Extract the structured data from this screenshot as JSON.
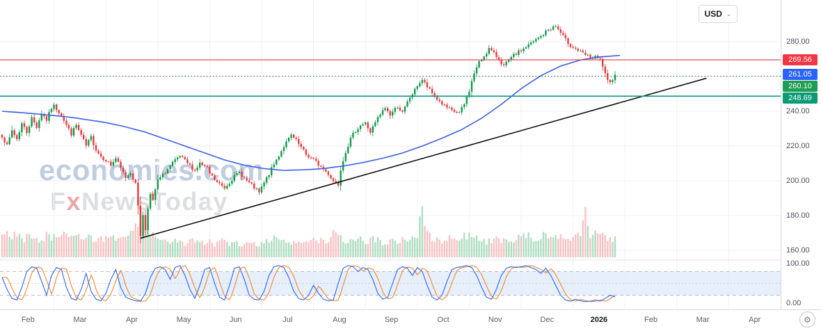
{
  "currency_selector": {
    "label": "USD",
    "chevron_icon": "⌄"
  },
  "watermark": {
    "line1": "economies.com",
    "line2_parts": [
      "F",
      "x",
      "NewsToday"
    ]
  },
  "icons": {
    "gear": "⚙",
    "chevron_down": "⌄"
  },
  "price_axis": {
    "ticks": [
      {
        "label": "280.00",
        "price": 280
      },
      {
        "label": "240.00",
        "price": 240
      },
      {
        "label": "220.00",
        "price": 220
      },
      {
        "label": "200.00",
        "price": 200
      },
      {
        "label": "180.00",
        "price": 180
      },
      {
        "label": "160.00",
        "price": 160
      }
    ],
    "oscillator_ticks": [
      {
        "label": "100.00",
        "value": 100
      },
      {
        "label": "0.00",
        "value": 0
      }
    ],
    "badges": [
      {
        "label": "269.56",
        "price": 269.56,
        "color": "#f23645",
        "role": "resistance-level"
      },
      {
        "label": "261.05",
        "price": 261.05,
        "color": "#2962ff",
        "role": "last-price"
      },
      {
        "label": "260.10",
        "price": 260.1,
        "color": "#1f9d52",
        "role": "dotted-level"
      },
      {
        "label": "248.69",
        "price": 248.69,
        "color": "#0a9a74",
        "role": "support-level"
      }
    ]
  },
  "time_axis": {
    "labels": [
      "Feb",
      "Mar",
      "Apr",
      "May",
      "Jun",
      "Jul",
      "Aug",
      "Sep",
      "Oct",
      "Nov",
      "Dec",
      "2026",
      "Feb",
      "Mar",
      "Apr"
    ],
    "emphasis_index": 11
  },
  "chart_data": {
    "type": "candlestick",
    "currency": "USD",
    "last_price": 261.05,
    "visible_price_range": [
      160,
      295
    ],
    "days_per_month": 21,
    "levels": [
      {
        "price": 269.56,
        "color": "#f23645",
        "style": "solid",
        "width": 1.1
      },
      {
        "price": 260.1,
        "color": "#1f7a3f",
        "style": "dotted",
        "width": 1.2
      },
      {
        "price": 248.69,
        "color": "#089981",
        "style": "solid",
        "width": 1.6
      }
    ],
    "trendline": {
      "from": {
        "day": 56,
        "price": 167
      },
      "to": {
        "day": 285,
        "price": 259
      },
      "color": "#000000"
    },
    "candle_up_color": "#0f9948",
    "candle_down_color": "#e23b3e",
    "ma_color": "#3a5fe5",
    "volume_up_color": "#8fcfa8",
    "volume_down_color": "#f2a9ab",
    "price_close_anchors": [
      [
        0,
        226
      ],
      [
        2,
        220
      ],
      [
        4,
        229
      ],
      [
        6,
        224
      ],
      [
        8,
        233
      ],
      [
        10,
        228
      ],
      [
        12,
        236
      ],
      [
        14,
        231
      ],
      [
        16,
        239
      ],
      [
        18,
        235
      ],
      [
        20,
        242
      ],
      [
        21,
        243
      ],
      [
        24,
        238
      ],
      [
        26,
        232
      ],
      [
        28,
        227
      ],
      [
        30,
        232
      ],
      [
        32,
        226
      ],
      [
        34,
        220
      ],
      [
        36,
        225
      ],
      [
        38,
        218
      ],
      [
        40,
        214
      ],
      [
        42,
        212
      ],
      [
        44,
        209
      ],
      [
        46,
        213
      ],
      [
        48,
        207
      ],
      [
        50,
        202
      ],
      [
        52,
        205
      ],
      [
        54,
        198
      ],
      [
        55,
        186
      ],
      [
        56,
        169
      ],
      [
        57,
        180
      ],
      [
        58,
        172
      ],
      [
        59,
        185
      ],
      [
        60,
        192
      ],
      [
        61,
        188
      ],
      [
        62,
        195
      ],
      [
        63,
        200
      ],
      [
        66,
        205
      ],
      [
        69,
        210
      ],
      [
        72,
        214
      ],
      [
        75,
        210
      ],
      [
        78,
        206
      ],
      [
        80,
        210
      ],
      [
        83,
        207
      ],
      [
        84,
        204
      ],
      [
        87,
        199
      ],
      [
        90,
        196
      ],
      [
        93,
        201
      ],
      [
        96,
        205
      ],
      [
        99,
        200
      ],
      [
        102,
        196
      ],
      [
        104,
        193
      ],
      [
        105,
        196
      ],
      [
        108,
        204
      ],
      [
        111,
        212
      ],
      [
        114,
        220
      ],
      [
        117,
        226
      ],
      [
        119,
        223
      ],
      [
        121,
        219
      ],
      [
        123,
        215
      ],
      [
        125,
        213
      ],
      [
        126,
        212
      ],
      [
        129,
        208
      ],
      [
        132,
        204
      ],
      [
        134,
        200
      ],
      [
        136,
        198
      ],
      [
        137,
        207
      ],
      [
        139,
        217
      ],
      [
        141,
        224
      ],
      [
        143,
        229
      ],
      [
        145,
        232
      ],
      [
        147,
        233
      ],
      [
        149,
        228
      ],
      [
        152,
        236
      ],
      [
        155,
        242
      ],
      [
        157,
        238
      ],
      [
        160,
        243
      ],
      [
        162,
        239
      ],
      [
        165,
        248
      ],
      [
        167,
        252
      ],
      [
        168,
        255
      ],
      [
        170,
        258
      ],
      [
        173,
        252
      ],
      [
        176,
        247
      ],
      [
        179,
        243
      ],
      [
        182,
        240
      ],
      [
        185,
        239
      ],
      [
        187,
        244
      ],
      [
        189,
        252
      ],
      [
        191,
        262
      ],
      [
        193,
        268
      ],
      [
        195,
        272
      ],
      [
        197,
        276
      ],
      [
        199,
        273
      ],
      [
        201,
        270
      ],
      [
        203,
        266
      ],
      [
        205,
        269
      ],
      [
        207,
        272
      ],
      [
        209,
        274
      ],
      [
        210,
        275
      ],
      [
        214,
        279
      ],
      [
        218,
        283
      ],
      [
        221,
        287
      ],
      [
        224,
        289
      ],
      [
        226,
        285
      ],
      [
        228,
        281
      ],
      [
        230,
        278
      ],
      [
        232,
        276
      ],
      [
        235,
        273
      ],
      [
        238,
        271
      ],
      [
        240,
        271
      ],
      [
        242,
        269.5
      ],
      [
        243,
        266
      ],
      [
        244,
        261
      ],
      [
        245,
        257
      ],
      [
        246,
        256
      ],
      [
        247,
        259
      ],
      [
        248,
        261.05
      ]
    ],
    "ma_anchors": [
      [
        0,
        240
      ],
      [
        14,
        238.5
      ],
      [
        28,
        236.5
      ],
      [
        42,
        233.5
      ],
      [
        50,
        231
      ],
      [
        58,
        228
      ],
      [
        66,
        224
      ],
      [
        74,
        220
      ],
      [
        82,
        216
      ],
      [
        90,
        212
      ],
      [
        98,
        209
      ],
      [
        106,
        207
      ],
      [
        114,
        206
      ],
      [
        122,
        206.3
      ],
      [
        130,
        207
      ],
      [
        138,
        208.5
      ],
      [
        146,
        210.5
      ],
      [
        154,
        213
      ],
      [
        162,
        216
      ],
      [
        170,
        220
      ],
      [
        178,
        224.5
      ],
      [
        186,
        229.5
      ],
      [
        194,
        236
      ],
      [
        202,
        244
      ],
      [
        210,
        253
      ],
      [
        218,
        260.5
      ],
      [
        226,
        266
      ],
      [
        234,
        269.5
      ],
      [
        242,
        271.3
      ],
      [
        252,
        272.3
      ]
    ],
    "volume_anchors": [
      [
        0,
        40
      ],
      [
        3,
        30
      ],
      [
        6,
        36
      ],
      [
        9,
        27
      ],
      [
        12,
        33
      ],
      [
        15,
        25
      ],
      [
        18,
        31
      ],
      [
        21,
        29
      ],
      [
        24,
        34
      ],
      [
        27,
        27
      ],
      [
        30,
        33
      ],
      [
        33,
        25
      ],
      [
        36,
        29
      ],
      [
        39,
        24
      ],
      [
        42,
        27
      ],
      [
        45,
        31
      ],
      [
        48,
        25
      ],
      [
        51,
        29
      ],
      [
        54,
        40
      ],
      [
        55,
        55
      ],
      [
        56,
        66
      ],
      [
        57,
        52
      ],
      [
        58,
        45
      ],
      [
        60,
        36
      ],
      [
        62,
        30
      ],
      [
        65,
        25
      ],
      [
        68,
        23
      ],
      [
        71,
        27
      ],
      [
        74,
        21
      ],
      [
        77,
        25
      ],
      [
        80,
        20
      ],
      [
        83,
        23
      ],
      [
        86,
        19
      ],
      [
        89,
        23
      ],
      [
        92,
        17
      ],
      [
        95,
        21
      ],
      [
        98,
        17
      ],
      [
        101,
        21
      ],
      [
        104,
        19
      ],
      [
        107,
        25
      ],
      [
        110,
        29
      ],
      [
        113,
        25
      ],
      [
        116,
        21
      ],
      [
        119,
        25
      ],
      [
        122,
        19
      ],
      [
        125,
        23
      ],
      [
        128,
        25
      ],
      [
        131,
        21
      ],
      [
        134,
        33
      ],
      [
        136,
        28
      ],
      [
        139,
        25
      ],
      [
        142,
        21
      ],
      [
        145,
        25
      ],
      [
        148,
        23
      ],
      [
        151,
        27
      ],
      [
        154,
        21
      ],
      [
        157,
        25
      ],
      [
        160,
        24
      ],
      [
        163,
        27
      ],
      [
        166,
        29
      ],
      [
        168,
        30
      ],
      [
        170,
        80
      ],
      [
        171,
        42
      ],
      [
        174,
        26
      ],
      [
        177,
        23
      ],
      [
        180,
        27
      ],
      [
        183,
        25
      ],
      [
        186,
        29
      ],
      [
        189,
        31
      ],
      [
        192,
        27
      ],
      [
        195,
        22
      ],
      [
        198,
        24
      ],
      [
        201,
        26
      ],
      [
        204,
        22
      ],
      [
        207,
        25
      ],
      [
        210,
        28
      ],
      [
        213,
        32
      ],
      [
        216,
        27
      ],
      [
        219,
        33
      ],
      [
        222,
        29
      ],
      [
        225,
        26
      ],
      [
        228,
        30
      ],
      [
        231,
        28
      ],
      [
        234,
        33
      ],
      [
        236,
        70
      ],
      [
        238,
        30
      ],
      [
        240,
        34
      ],
      [
        242,
        40
      ],
      [
        244,
        30
      ],
      [
        246,
        27
      ],
      [
        248,
        25
      ]
    ],
    "stochastic": {
      "k_color": "#2962ff",
      "d_color": "#f0862b",
      "overbought": 80,
      "oversold": 20,
      "mid": 50,
      "band_start_day": 47,
      "band_color": "#ddeaf8",
      "k_anchors": [
        [
          0,
          65
        ],
        [
          2,
          35
        ],
        [
          4,
          12
        ],
        [
          6,
          8
        ],
        [
          8,
          40
        ],
        [
          10,
          80
        ],
        [
          12,
          92
        ],
        [
          14,
          88
        ],
        [
          16,
          55
        ],
        [
          18,
          20
        ],
        [
          20,
          70
        ],
        [
          22,
          90
        ],
        [
          24,
          85
        ],
        [
          26,
          40
        ],
        [
          28,
          12
        ],
        [
          30,
          8
        ],
        [
          32,
          35
        ],
        [
          34,
          75
        ],
        [
          36,
          30
        ],
        [
          38,
          10
        ],
        [
          40,
          6
        ],
        [
          42,
          25
        ],
        [
          44,
          60
        ],
        [
          46,
          85
        ],
        [
          48,
          40
        ],
        [
          50,
          15
        ],
        [
          52,
          10
        ],
        [
          54,
          6
        ],
        [
          56,
          5
        ],
        [
          58,
          25
        ],
        [
          60,
          65
        ],
        [
          62,
          88
        ],
        [
          64,
          92
        ],
        [
          66,
          85
        ],
        [
          68,
          60
        ],
        [
          70,
          90
        ],
        [
          72,
          95
        ],
        [
          74,
          70
        ],
        [
          76,
          35
        ],
        [
          78,
          12
        ],
        [
          80,
          45
        ],
        [
          82,
          85
        ],
        [
          84,
          90
        ],
        [
          86,
          50
        ],
        [
          88,
          15
        ],
        [
          90,
          8
        ],
        [
          92,
          45
        ],
        [
          94,
          88
        ],
        [
          96,
          92
        ],
        [
          98,
          60
        ],
        [
          100,
          20
        ],
        [
          102,
          10
        ],
        [
          104,
          8
        ],
        [
          106,
          30
        ],
        [
          108,
          70
        ],
        [
          110,
          92
        ],
        [
          112,
          95
        ],
        [
          114,
          90
        ],
        [
          116,
          65
        ],
        [
          118,
          30
        ],
        [
          120,
          12
        ],
        [
          122,
          8
        ],
        [
          124,
          20
        ],
        [
          126,
          45
        ],
        [
          128,
          25
        ],
        [
          130,
          10
        ],
        [
          132,
          6
        ],
        [
          134,
          8
        ],
        [
          136,
          50
        ],
        [
          138,
          88
        ],
        [
          140,
          95
        ],
        [
          142,
          92
        ],
        [
          144,
          80
        ],
        [
          146,
          90
        ],
        [
          148,
          85
        ],
        [
          150,
          60
        ],
        [
          152,
          25
        ],
        [
          154,
          10
        ],
        [
          156,
          15
        ],
        [
          158,
          50
        ],
        [
          160,
          85
        ],
        [
          162,
          92
        ],
        [
          164,
          88
        ],
        [
          166,
          70
        ],
        [
          168,
          90
        ],
        [
          170,
          80
        ],
        [
          172,
          45
        ],
        [
          174,
          15
        ],
        [
          176,
          8
        ],
        [
          178,
          20
        ],
        [
          180,
          55
        ],
        [
          182,
          85
        ],
        [
          184,
          90
        ],
        [
          186,
          92
        ],
        [
          188,
          95
        ],
        [
          190,
          90
        ],
        [
          192,
          70
        ],
        [
          194,
          40
        ],
        [
          196,
          15
        ],
        [
          198,
          10
        ],
        [
          200,
          35
        ],
        [
          202,
          70
        ],
        [
          204,
          88
        ],
        [
          206,
          92
        ],
        [
          208,
          90
        ],
        [
          210,
          92
        ],
        [
          212,
          95
        ],
        [
          214,
          90
        ],
        [
          216,
          85
        ],
        [
          218,
          75
        ],
        [
          220,
          88
        ],
        [
          222,
          70
        ],
        [
          224,
          45
        ],
        [
          226,
          20
        ],
        [
          228,
          8
        ],
        [
          230,
          5
        ],
        [
          232,
          10
        ],
        [
          234,
          6
        ],
        [
          236,
          4
        ],
        [
          238,
          5
        ],
        [
          240,
          8
        ],
        [
          242,
          5
        ],
        [
          244,
          12
        ],
        [
          246,
          20
        ],
        [
          248,
          16
        ]
      ]
    }
  }
}
